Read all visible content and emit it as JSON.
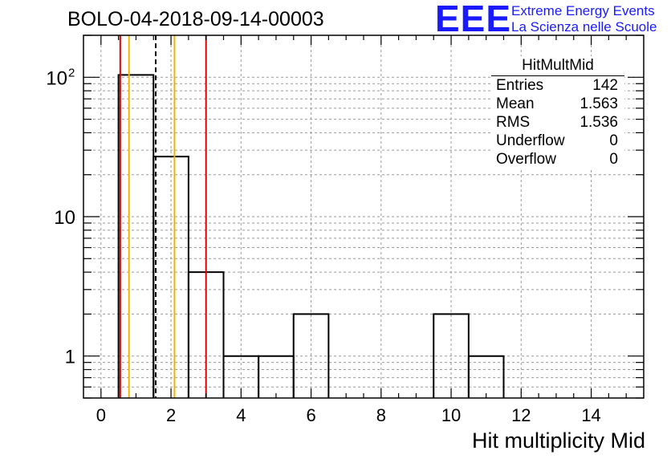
{
  "title": "BOLO-04-2018-09-14-00003",
  "logo": {
    "mark": "EEE",
    "line1": "Extreme Energy Events",
    "line2": "La Scienza nelle Scuole"
  },
  "stats_box": {
    "title": "HitMultMid",
    "rows": [
      {
        "label": "Entries",
        "value": "142"
      },
      {
        "label": "Mean",
        "value": "1.563"
      },
      {
        "label": "RMS",
        "value": "1.536"
      },
      {
        "label": "Underflow",
        "value": "0"
      },
      {
        "label": "Overflow",
        "value": "0"
      }
    ]
  },
  "chart_data": {
    "type": "histogram",
    "xlabel": "Hit multiplicity Mid",
    "ylabel": "",
    "log_y": true,
    "xlim": [
      -0.5,
      15.5
    ],
    "ylim": [
      0.5,
      200
    ],
    "grid": true,
    "x_ticks": [
      "0",
      "2",
      "4",
      "6",
      "8",
      "10",
      "12",
      "14"
    ],
    "y_ticks": [
      {
        "value": 1,
        "label": "1"
      },
      {
        "value": 10,
        "label": "10"
      },
      {
        "value": 100,
        "label": "10",
        "exponent": "2"
      }
    ],
    "bins": [
      {
        "low": 0.5,
        "high": 1.5,
        "count": 104
      },
      {
        "low": 1.5,
        "high": 2.5,
        "count": 27
      },
      {
        "low": 2.5,
        "high": 3.5,
        "count": 4
      },
      {
        "low": 3.5,
        "high": 4.5,
        "count": 1
      },
      {
        "low": 4.5,
        "high": 5.5,
        "count": 1
      },
      {
        "low": 5.5,
        "high": 6.5,
        "count": 2
      },
      {
        "low": 9.5,
        "high": 10.5,
        "count": 2
      },
      {
        "low": 10.5,
        "high": 11.5,
        "count": 1
      }
    ],
    "vertical_lines": [
      {
        "x": 0.55,
        "color": "#e00000",
        "style": "solid"
      },
      {
        "x": 0.8,
        "color": "#f0b400",
        "style": "solid"
      },
      {
        "x": 1.563,
        "color": "#000000",
        "style": "dashed"
      },
      {
        "x": 2.1,
        "color": "#f0b400",
        "style": "solid"
      },
      {
        "x": 3.0,
        "color": "#e00000",
        "style": "solid"
      }
    ]
  }
}
